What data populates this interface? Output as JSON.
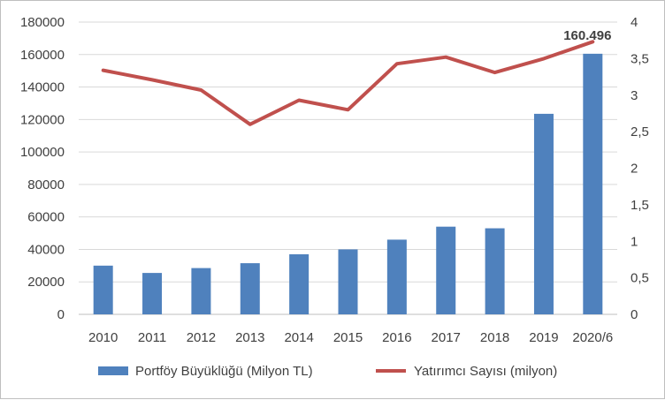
{
  "chart_data": {
    "type": "bar+line",
    "categories": [
      "2010",
      "2011",
      "2012",
      "2013",
      "2014",
      "2015",
      "2016",
      "2017",
      "2018",
      "2019",
      "2020/6"
    ],
    "series": [
      {
        "name": "Portföy Büyüklüğü (Milyon TL)",
        "type": "bar",
        "axis": "left",
        "color": "#4f81bd",
        "values": [
          30000,
          25500,
          28500,
          31500,
          37000,
          40000,
          46000,
          54000,
          53000,
          123500,
          160496
        ]
      },
      {
        "name": "Yatırımcı Sayısı (milyon)",
        "type": "line",
        "axis": "right",
        "color": "#c0504d",
        "values": [
          3.34,
          3.21,
          3.07,
          2.6,
          2.93,
          2.8,
          3.43,
          3.52,
          3.31,
          3.5,
          3.73
        ]
      }
    ],
    "y_left": {
      "min": 0,
      "max": 180000,
      "step": 20000,
      "tick_labels": [
        "0",
        "20000",
        "40000",
        "60000",
        "80000",
        "100000",
        "120000",
        "140000",
        "160000",
        "180000"
      ]
    },
    "y_right": {
      "min": 0,
      "max": 4,
      "step": 0.5,
      "tick_labels": [
        "0",
        "0,5",
        "1",
        "1,5",
        "2",
        "2,5",
        "3",
        "3,5",
        "4"
      ]
    },
    "data_labels": [
      {
        "series": 0,
        "index": 10,
        "text": "160.496"
      }
    ],
    "grid": true,
    "legend_position": "bottom"
  }
}
